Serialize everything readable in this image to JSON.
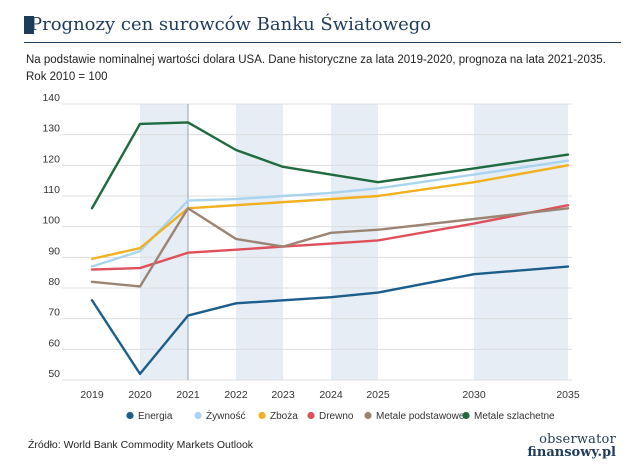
{
  "header": {
    "title": "Prognozy cen surowców Banku Światowego",
    "subtitle_line1": "Na podstawie nominalnej wartości dolara USA. Dane historyczne za lata 2019-2020, prognoza na lata 2021-2035.",
    "subtitle_line2": "Rok 2010 = 100"
  },
  "footer": {
    "source": "Źródło: World Bank Commodity Markets Outlook",
    "logo_top": "obserwator",
    "logo_bottom": "finansowy.pl"
  },
  "colors": {
    "title": "#1f3b5a",
    "shade": "#e6edf5",
    "grid": "#d9d9d9",
    "forecast_line": "#8ea3bd"
  },
  "chart_data": {
    "type": "line",
    "x": [
      2019,
      2020,
      2021,
      2022,
      2023,
      2024,
      2025,
      2030,
      2035
    ],
    "x_tick_labels": [
      "2019",
      "2020",
      "2021",
      "2022",
      "2023",
      "2024",
      "2025",
      "2030",
      "2035"
    ],
    "ylim": [
      50,
      140
    ],
    "yticks": [
      50,
      60,
      70,
      80,
      90,
      100,
      110,
      120,
      130,
      140
    ],
    "grid": true,
    "legend_position": "bottom",
    "forecast_start": 2021,
    "series": [
      {
        "name": "Energia",
        "color": "#1b5e8c",
        "values": [
          76,
          52,
          71,
          75,
          76,
          77,
          78.5,
          84.5,
          87
        ]
      },
      {
        "name": "Żywność",
        "color": "#a9d4ee",
        "values": [
          87,
          92,
          108.5,
          109,
          110,
          111,
          112.5,
          117,
          121.5
        ]
      },
      {
        "name": "Zboża",
        "color": "#f2b01e",
        "values": [
          89.5,
          93,
          106,
          107,
          108,
          109,
          110,
          114.5,
          120
        ]
      },
      {
        "name": "Drewno",
        "color": "#e0505a",
        "values": [
          86,
          86.5,
          91.5,
          92.5,
          93.5,
          94.5,
          95.5,
          101,
          107
        ]
      },
      {
        "name": "Metale podstawowe",
        "color": "#9c8472",
        "values": [
          82,
          80.5,
          106,
          96,
          93.5,
          98,
          99,
          102.5,
          106
        ]
      },
      {
        "name": "Metale szlachetne",
        "color": "#1f6b3f",
        "values": [
          106,
          133.5,
          134,
          125,
          119.5,
          117,
          114.5,
          119,
          123.5
        ]
      }
    ]
  }
}
